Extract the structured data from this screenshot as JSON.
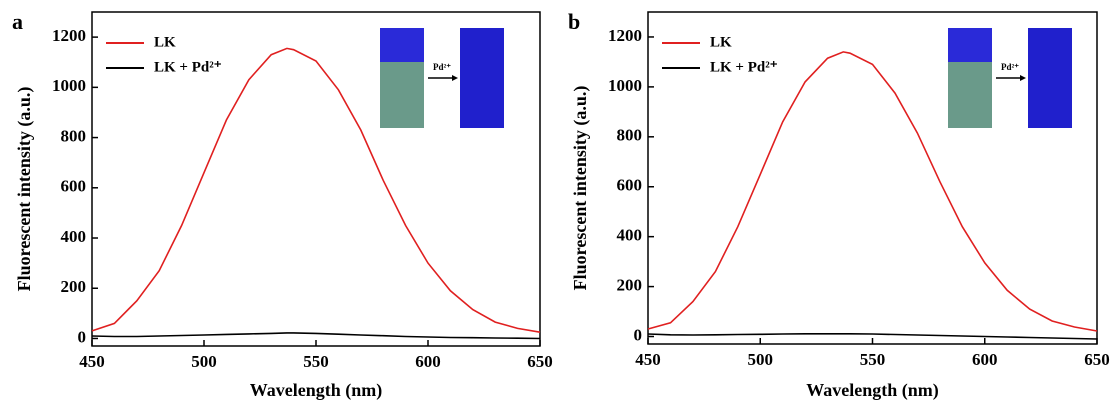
{
  "chart_data": [
    {
      "type": "line",
      "panel_label": "a",
      "x_label": "Wavelength (nm)",
      "y_label": "Fluorescent intensity (a.u.)",
      "inset_label": "Pd²⁺",
      "x": [
        450,
        460,
        470,
        480,
        490,
        500,
        510,
        520,
        530,
        537,
        540,
        550,
        560,
        570,
        580,
        590,
        600,
        610,
        620,
        630,
        640,
        650
      ],
      "series": [
        {
          "name": "LK",
          "color": "#e02020",
          "values": [
            30,
            60,
            150,
            270,
            450,
            660,
            870,
            1030,
            1130,
            1155,
            1150,
            1105,
            990,
            830,
            630,
            450,
            300,
            190,
            115,
            65,
            40,
            25
          ]
        },
        {
          "name": "LK + Pd²⁺",
          "color": "#000000",
          "values": [
            10,
            8,
            8,
            10,
            12,
            14,
            16,
            18,
            20,
            22,
            22,
            20,
            17,
            14,
            11,
            8,
            6,
            4,
            3,
            2,
            1,
            0
          ]
        }
      ],
      "xlim": [
        450,
        650
      ],
      "ylim": [
        -30,
        1300
      ],
      "xticks": [
        450,
        500,
        550,
        600,
        650
      ],
      "yticks": [
        0,
        200,
        400,
        600,
        800,
        1000,
        1200
      ]
    },
    {
      "type": "line",
      "panel_label": "b",
      "x_label": "Wavelength (nm)",
      "y_label": "Fluorescent intensity (a.u.)",
      "inset_label": "Pd²⁺",
      "x": [
        450,
        460,
        470,
        480,
        490,
        500,
        510,
        520,
        530,
        537,
        540,
        550,
        560,
        570,
        580,
        590,
        600,
        610,
        620,
        630,
        640,
        650
      ],
      "series": [
        {
          "name": "LK",
          "color": "#e02020",
          "values": [
            30,
            55,
            140,
            260,
            440,
            650,
            860,
            1020,
            1115,
            1140,
            1135,
            1090,
            975,
            815,
            620,
            440,
            295,
            185,
            110,
            62,
            38,
            22
          ]
        },
        {
          "name": "LK + Pd²⁺",
          "color": "#000000",
          "values": [
            10,
            7,
            6,
            7,
            8,
            9,
            10,
            11,
            11,
            11,
            11,
            10,
            8,
            6,
            4,
            2,
            0,
            -2,
            -4,
            -6,
            -8,
            -10
          ]
        }
      ],
      "xlim": [
        450,
        650
      ],
      "ylim": [
        -30,
        1300
      ],
      "xticks": [
        450,
        500,
        550,
        600,
        650
      ],
      "yticks": [
        0,
        200,
        400,
        600,
        800,
        1000,
        1200
      ]
    }
  ]
}
